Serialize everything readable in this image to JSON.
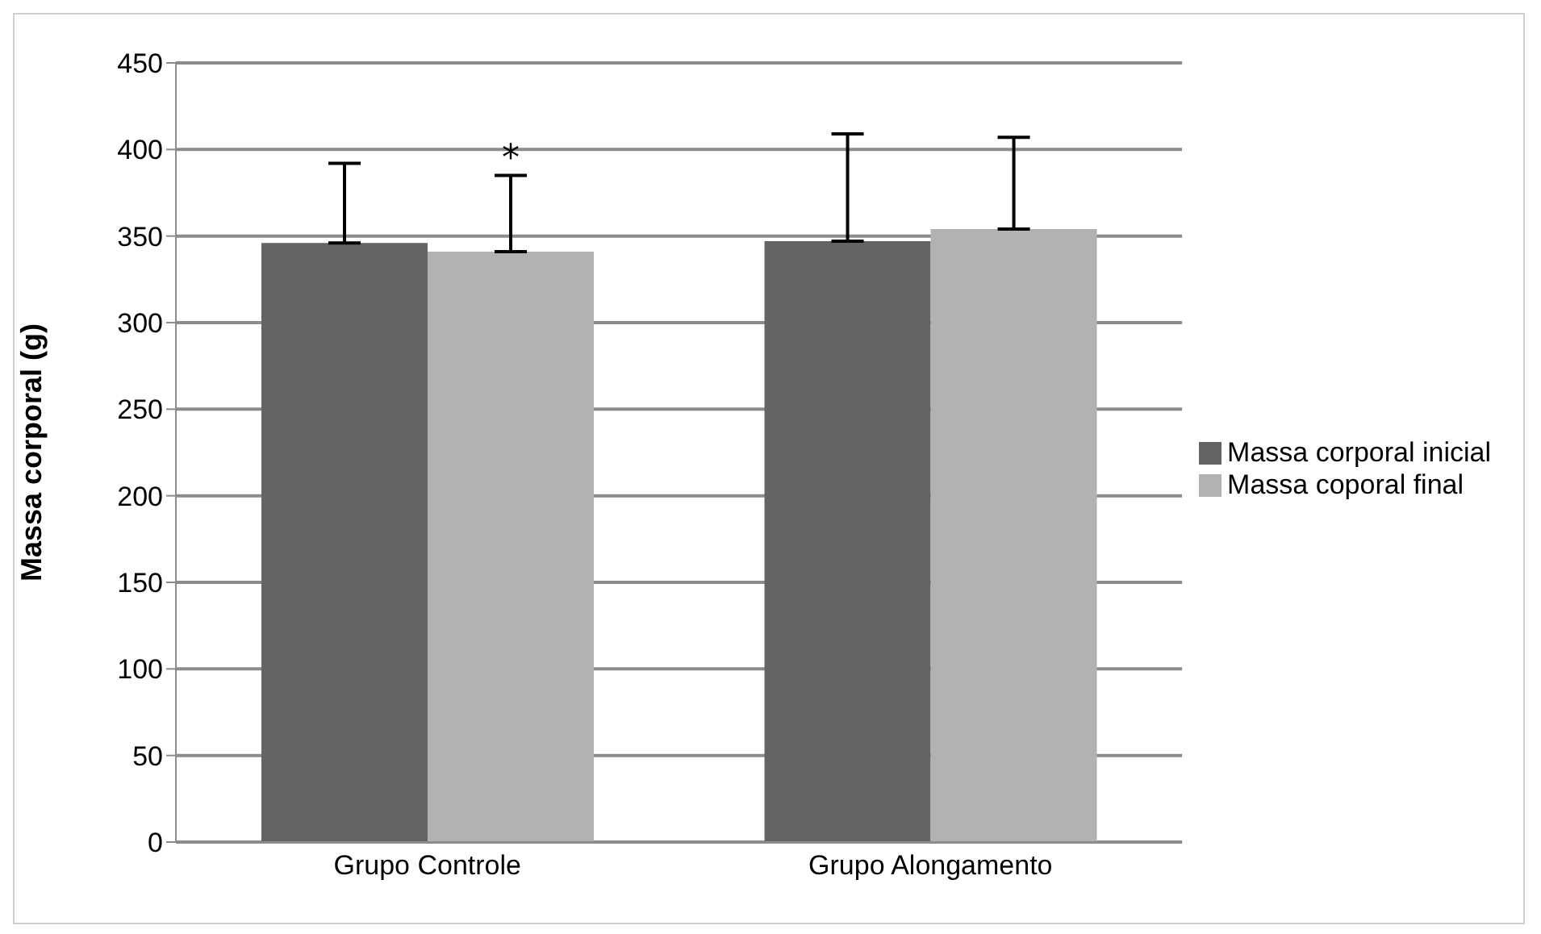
{
  "chart_data": {
    "type": "bar",
    "ylabel": "Massa corporal (g)",
    "categories": [
      "Grupo Controle",
      "Grupo Alongamento"
    ],
    "series": [
      {
        "name": "Massa corporal inicial",
        "color": "#646464",
        "values": [
          346,
          347
        ],
        "errors": [
          [
            346,
            392
          ],
          [
            347,
            409
          ]
        ]
      },
      {
        "name": "Massa coporal final",
        "color": "#b2b2b2",
        "values": [
          341,
          354
        ],
        "errors": [
          [
            341,
            385
          ],
          [
            354,
            407
          ]
        ]
      }
    ],
    "ylim": [
      0,
      450
    ],
    "yticks": [
      0,
      50,
      100,
      150,
      200,
      250,
      300,
      350,
      400,
      450
    ],
    "grid": "y",
    "legend": "right",
    "annotations": [
      "*"
    ]
  }
}
